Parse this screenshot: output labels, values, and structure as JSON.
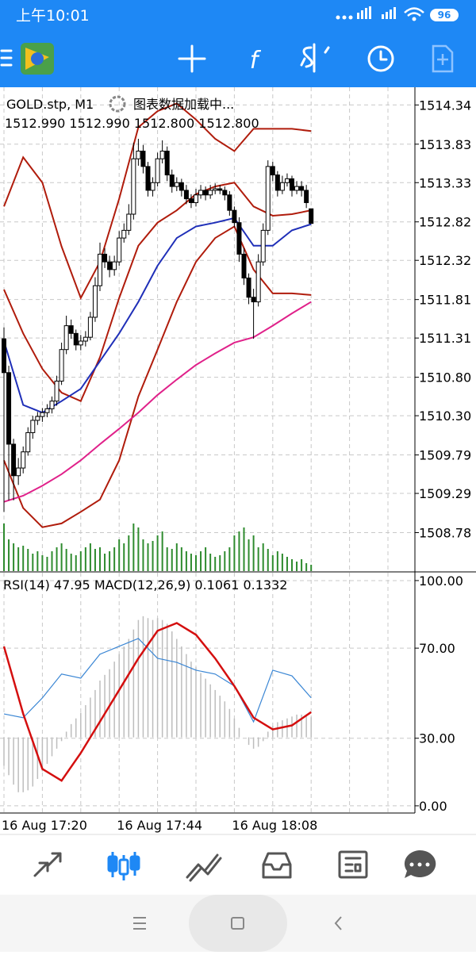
{
  "status_bar": {
    "time": "上午10:01",
    "battery": "96"
  },
  "chart_data": {
    "type": "candlestick",
    "title": "GOLD.stp, M1",
    "status": "图表数据加载中...",
    "ohlc_text": "1512.990 1512.990 1512.800 1512.800",
    "grid": true,
    "candle_colors": {
      "up": "#ffffff",
      "down": "#000000",
      "edge": "#000000"
    },
    "candles": [
      [
        1511.3,
        1511.45,
        1509.05,
        1510.86
      ],
      [
        1510.86,
        1510.95,
        1509.2,
        1509.93
      ],
      [
        1509.93,
        1510.0,
        1509.2,
        1509.52
      ],
      [
        1509.52,
        1509.75,
        1509.4,
        1509.62
      ],
      [
        1509.62,
        1509.9,
        1509.55,
        1509.83
      ],
      [
        1509.83,
        1510.15,
        1509.78,
        1510.08
      ],
      [
        1510.08,
        1510.3,
        1510.0,
        1510.24
      ],
      [
        1510.24,
        1510.35,
        1510.18,
        1510.29
      ],
      [
        1510.29,
        1510.4,
        1510.22,
        1510.34
      ],
      [
        1510.34,
        1510.45,
        1510.28,
        1510.39
      ],
      [
        1510.39,
        1510.55,
        1510.33,
        1510.49
      ],
      [
        1510.49,
        1510.82,
        1510.43,
        1510.75
      ],
      [
        1510.75,
        1511.25,
        1510.7,
        1511.16
      ],
      [
        1511.16,
        1511.6,
        1511.1,
        1511.47
      ],
      [
        1511.47,
        1511.55,
        1511.3,
        1511.37
      ],
      [
        1511.37,
        1511.42,
        1511.15,
        1511.22
      ],
      [
        1511.22,
        1511.35,
        1511.15,
        1511.27
      ],
      [
        1511.27,
        1511.4,
        1511.2,
        1511.32
      ],
      [
        1511.32,
        1511.65,
        1511.28,
        1511.58
      ],
      [
        1511.58,
        1512.1,
        1511.52,
        1511.99
      ],
      [
        1511.99,
        1512.55,
        1511.92,
        1512.4
      ],
      [
        1512.4,
        1512.48,
        1512.22,
        1512.3
      ],
      [
        1512.3,
        1512.38,
        1512.1,
        1512.2
      ],
      [
        1512.2,
        1512.38,
        1512.12,
        1512.3
      ],
      [
        1512.3,
        1512.7,
        1512.25,
        1512.61
      ],
      [
        1512.61,
        1512.8,
        1512.55,
        1512.71
      ],
      [
        1512.71,
        1513.05,
        1512.65,
        1512.92
      ],
      [
        1512.92,
        1513.85,
        1512.85,
        1513.64
      ],
      [
        1513.64,
        1513.9,
        1513.55,
        1513.74
      ],
      [
        1513.74,
        1513.82,
        1513.45,
        1513.54
      ],
      [
        1513.54,
        1513.6,
        1513.15,
        1513.23
      ],
      [
        1513.23,
        1513.4,
        1513.15,
        1513.33
      ],
      [
        1513.33,
        1513.72,
        1513.28,
        1513.64
      ],
      [
        1513.64,
        1513.88,
        1513.58,
        1513.74
      ],
      [
        1513.74,
        1513.8,
        1513.35,
        1513.43
      ],
      [
        1513.43,
        1513.5,
        1513.2,
        1513.28
      ],
      [
        1513.28,
        1513.4,
        1513.22,
        1513.33
      ],
      [
        1513.33,
        1513.38,
        1513.15,
        1513.23
      ],
      [
        1513.23,
        1513.3,
        1513.05,
        1513.12
      ],
      [
        1513.12,
        1513.18,
        1513.0,
        1513.07
      ],
      [
        1513.07,
        1513.25,
        1513.02,
        1513.17
      ],
      [
        1513.17,
        1513.3,
        1513.12,
        1513.23
      ],
      [
        1513.23,
        1513.28,
        1513.1,
        1513.17
      ],
      [
        1513.17,
        1513.3,
        1513.12,
        1513.23
      ],
      [
        1513.23,
        1513.32,
        1513.18,
        1513.25
      ],
      [
        1513.25,
        1513.3,
        1513.18,
        1513.23
      ],
      [
        1513.23,
        1513.28,
        1513.1,
        1513.17
      ],
      [
        1513.17,
        1513.22,
        1512.9,
        1512.97
      ],
      [
        1512.97,
        1513.02,
        1512.75,
        1512.81
      ],
      [
        1512.81,
        1512.88,
        1512.3,
        1512.4
      ],
      [
        1512.4,
        1512.48,
        1512.0,
        1512.09
      ],
      [
        1512.09,
        1512.15,
        1511.75,
        1511.84
      ],
      [
        1511.84,
        1511.95,
        1511.3,
        1511.78
      ],
      [
        1511.78,
        1512.4,
        1511.72,
        1512.3
      ],
      [
        1512.3,
        1512.8,
        1512.25,
        1512.71
      ],
      [
        1512.71,
        1513.62,
        1512.65,
        1513.54
      ],
      [
        1513.54,
        1513.6,
        1513.35,
        1513.43
      ],
      [
        1513.43,
        1513.48,
        1513.15,
        1513.23
      ],
      [
        1513.23,
        1513.42,
        1513.18,
        1513.33
      ],
      [
        1513.33,
        1513.45,
        1513.28,
        1513.38
      ],
      [
        1513.38,
        1513.42,
        1513.15,
        1513.23
      ],
      [
        1513.23,
        1513.35,
        1513.18,
        1513.28
      ],
      [
        1513.28,
        1513.35,
        1513.15,
        1513.23
      ],
      [
        1513.23,
        1513.3,
        1513.0,
        1513.07
      ],
      [
        1512.99,
        1512.99,
        1512.8,
        1512.8
      ]
    ],
    "ylim": [
      1508.28,
      1514.57
    ],
    "yticks": [
      1514.34,
      1513.83,
      1513.33,
      1512.82,
      1512.32,
      1511.81,
      1511.31,
      {
        "value": 1510.8,
        "label": "1510.80"
      },
      {
        "value": 1510.3,
        "label": "1510.30"
      },
      1509.79,
      1509.29,
      1508.78
    ],
    "line_x": [
      0,
      4,
      8,
      12,
      16,
      20,
      24,
      28,
      32,
      36,
      40,
      44,
      48,
      52,
      56,
      60,
      64
    ],
    "lines": [
      {
        "color": "#b01c0c",
        "values": [
          1513.02,
          1513.66,
          1513.33,
          1512.5,
          1511.83,
          1512.3,
          1513.12,
          1514.05,
          1514.26,
          1514.36,
          1514.15,
          1513.9,
          1513.74,
          1514.03,
          1514.03,
          1514.03,
          1514.0
        ]
      },
      {
        "color": "#b01c0c",
        "values": [
          1511.94,
          1511.37,
          1510.91,
          1510.6,
          1510.49,
          1511.06,
          1511.83,
          1512.51,
          1512.81,
          1512.97,
          1513.18,
          1513.28,
          1513.33,
          1513.02,
          1512.9,
          1512.92,
          1512.97
        ]
      },
      {
        "color": "#b01c0c",
        "values": [
          1509.72,
          1509.1,
          1508.85,
          1508.9,
          1509.05,
          1509.21,
          1509.72,
          1510.55,
          1511.16,
          1511.78,
          1512.3,
          1512.61,
          1512.76,
          1512.2,
          1511.89,
          1511.89,
          1511.87
        ]
      },
      {
        "color": "#1f2fb8",
        "values": [
          1511.27,
          1510.44,
          1510.34,
          1510.49,
          1510.65,
          1511.01,
          1511.37,
          1511.78,
          1512.25,
          1512.61,
          1512.76,
          1512.81,
          1512.87,
          1512.51,
          1512.51,
          1512.71,
          1512.79
        ]
      },
      {
        "color": "#e0218a",
        "values": [
          1509.18,
          1509.26,
          1509.39,
          1509.54,
          1509.72,
          1509.93,
          1510.13,
          1510.34,
          1510.57,
          1510.77,
          1510.96,
          1511.11,
          1511.25,
          1511.32,
          1511.47,
          1511.63,
          1511.78
        ]
      }
    ],
    "volume": {
      "color": "#2e8b2e",
      "values": [
        60,
        40,
        35,
        30,
        32,
        28,
        22,
        25,
        20,
        18,
        25,
        30,
        35,
        28,
        22,
        20,
        25,
        30,
        35,
        28,
        30,
        22,
        25,
        30,
        40,
        35,
        45,
        60,
        55,
        40,
        35,
        38,
        45,
        50,
        30,
        28,
        35,
        30,
        25,
        22,
        20,
        25,
        30,
        22,
        18,
        20,
        25,
        30,
        45,
        50,
        55,
        40,
        45,
        30,
        35,
        28,
        20,
        25,
        22,
        18,
        15,
        12,
        15,
        10,
        8
      ]
    },
    "indicator_label": "RSI(14) 47.95 MACD(12,26,9) 0.1061 0.1332",
    "ylim_lower": [
      -3.2,
      103.5
    ],
    "yticks_lower": [
      {
        "value": 100,
        "label": "100.00"
      },
      {
        "value": 70,
        "label": "70.00"
      },
      {
        "value": 30,
        "label": "30.00"
      },
      {
        "value": 0,
        "label": "0.00"
      }
    ],
    "rsi": {
      "color": "#3a86d4",
      "values": [
        40.8,
        39.1,
        47.9,
        58.5,
        56.7,
        67.3,
        70.8,
        74.3,
        65.5,
        63.7,
        60.2,
        58.5,
        53.2,
        37.3,
        60.2,
        57.7,
        47.95
      ]
    },
    "macd_ylim": [
      -0.4,
      0.87
    ],
    "macd": {
      "color": "#bdbdbd",
      "values": [
        -0.15,
        -0.2,
        -0.25,
        -0.29,
        -0.29,
        -0.28,
        -0.26,
        -0.22,
        -0.18,
        -0.14,
        -0.1,
        -0.06,
        -0.02,
        0.03,
        0.07,
        0.1,
        0.13,
        0.17,
        0.21,
        0.25,
        0.3,
        0.33,
        0.36,
        0.4,
        0.44,
        0.48,
        0.52,
        0.57,
        0.62,
        0.64,
        0.63,
        0.62,
        0.63,
        0.62,
        0.6,
        0.56,
        0.52,
        0.48,
        0.44,
        0.4,
        0.37,
        0.34,
        0.31,
        0.28,
        0.25,
        0.22,
        0.19,
        0.15,
        0.1,
        0.05,
        0.0,
        -0.04,
        -0.06,
        -0.05,
        -0.02,
        0.03,
        0.06,
        0.08,
        0.09,
        0.1,
        0.11,
        0.12,
        0.12,
        0.11,
        0.1061
      ]
    },
    "macd_signal": {
      "color": "#d40f0f",
      "values": [
        0.48,
        0.125,
        -0.167,
        -0.229,
        -0.083,
        0.083,
        0.25,
        0.417,
        0.563,
        0.604,
        0.542,
        0.417,
        0.271,
        0.104,
        0.042,
        0.063,
        0.1332
      ]
    },
    "time_labels": [
      "16 Aug 17:20",
      "16 Aug 17:44",
      "16 Aug 18:08"
    ],
    "time_label_index": [
      0,
      24,
      48
    ]
  }
}
